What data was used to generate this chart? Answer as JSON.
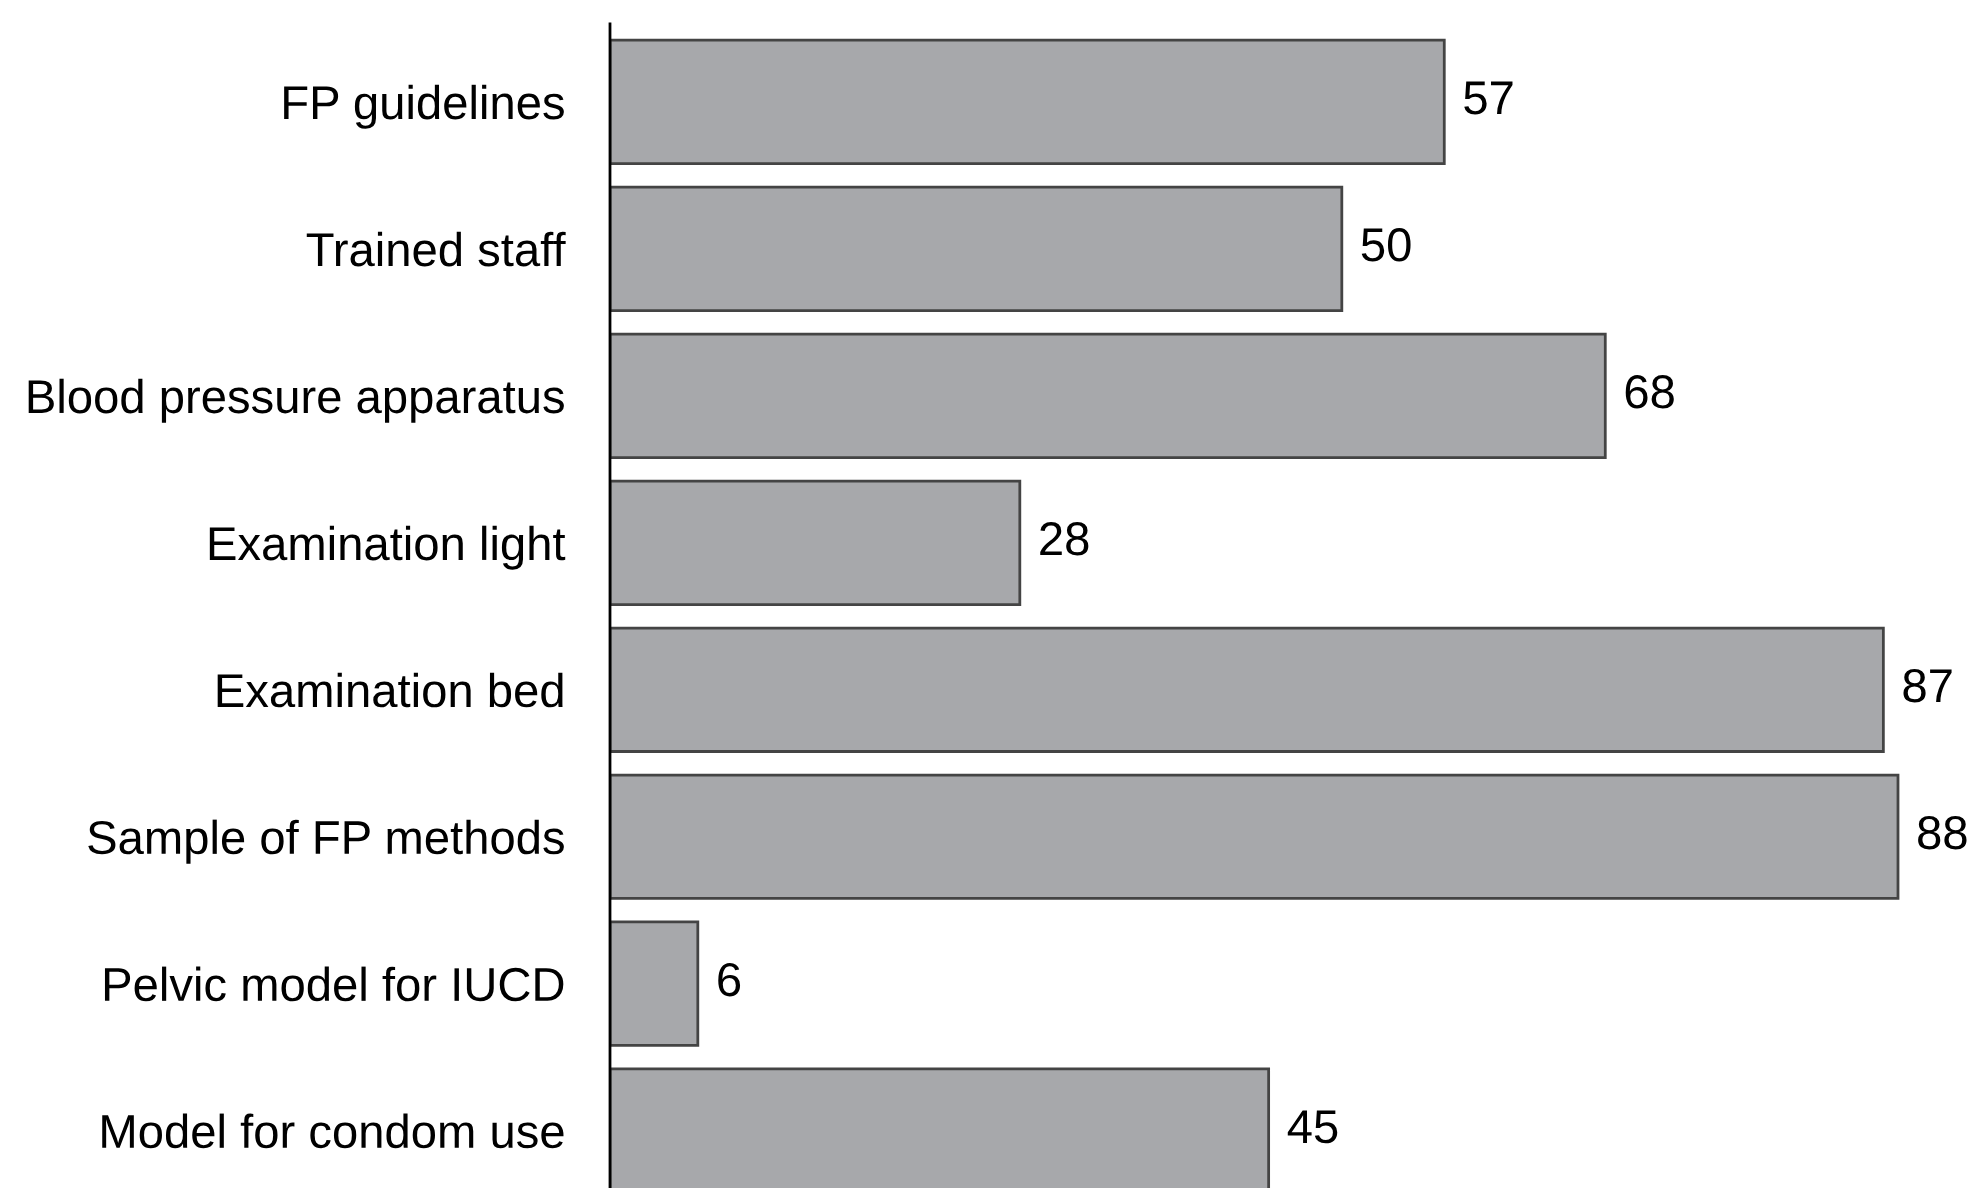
{
  "chart_data": {
    "type": "bar",
    "orientation": "horizontal",
    "categories": [
      "FP guidelines",
      "Trained staff",
      "Blood pressure apparatus",
      "Examination light",
      "Examination bed",
      "Sample of FP methods",
      "Pelvic model for IUCD",
      "Model for condom use"
    ],
    "values": [
      57,
      50,
      68,
      28,
      87,
      88,
      6,
      45
    ],
    "color": "#a7a8ab",
    "data_labels": true
  }
}
